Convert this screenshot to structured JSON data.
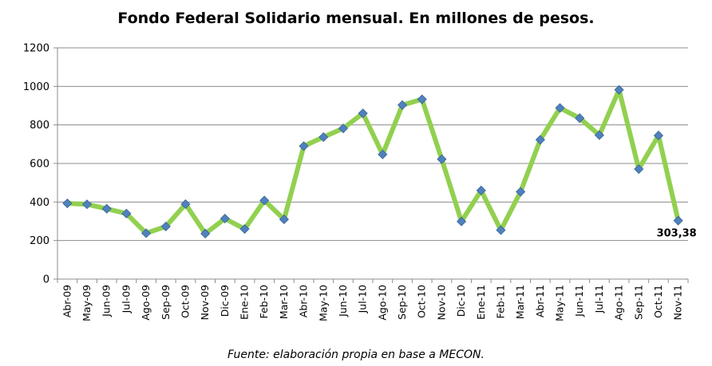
{
  "chart_data": {
    "type": "line",
    "title": "Fondo Federal Solidario mensual. En millones de pesos.",
    "source": "Fuente: elaboración propia en base a MECON.",
    "xlabel": "",
    "ylabel": "",
    "ylim": [
      0,
      1200
    ],
    "yticks": [
      "0",
      "200",
      "400",
      "600",
      "800",
      "1000",
      "1200"
    ],
    "grid": true,
    "legend": "none",
    "categories": [
      "Abr-09",
      "May-09",
      "Jun-09",
      "Jul-09",
      "Ago-09",
      "Sep-09",
      "Oct-09",
      "Nov-09",
      "Dic-09",
      "Ene-10",
      "Feb-10",
      "Mar-10",
      "Abr-10",
      "May-10",
      "Jun-10",
      "Jul-10",
      "Ago-10",
      "Sep-10",
      "Oct-10",
      "Nov-10",
      "Dic-10",
      "Ene-11",
      "Feb-11",
      "Mar-11",
      "Abr-11",
      "May-11",
      "Jun-11",
      "Jul-11",
      "Ago-11",
      "Sep-11",
      "Oct-11",
      "Nov-11"
    ],
    "series": [
      {
        "values": [
          393,
          388,
          365,
          340,
          238,
          273,
          389,
          236,
          314,
          260,
          408,
          310,
          690,
          737,
          782,
          860,
          647,
          903,
          933,
          622,
          299,
          460,
          254,
          453,
          723,
          888,
          835,
          747,
          982,
          571,
          745,
          303.38
        ],
        "line_color": "#92d050",
        "marker_color": "#4f81bd"
      }
    ],
    "annotations": [
      {
        "category": "Nov-11",
        "text": "303,38"
      }
    ]
  }
}
